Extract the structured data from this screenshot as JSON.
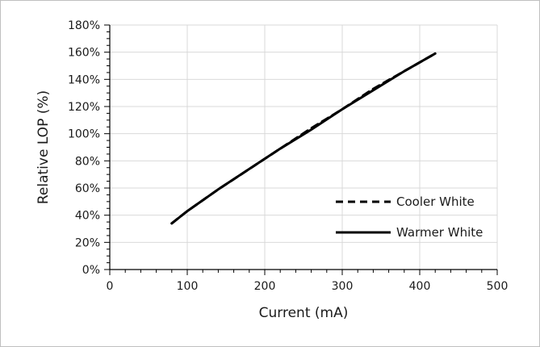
{
  "chart_data": {
    "type": "line",
    "xlabel": "Current (mA)",
    "ylabel": "Relative LOP (%)",
    "xlim": [
      0,
      500
    ],
    "ylim": [
      0,
      180
    ],
    "x_ticks": [
      "0",
      "100",
      "200",
      "300",
      "400",
      "500"
    ],
    "y_ticks": [
      "0%",
      "20%",
      "40%",
      "60%",
      "80%",
      "100%",
      "120%",
      "140%",
      "160%",
      "180%"
    ],
    "grid": true,
    "legend_position": "bottom-right",
    "series": [
      {
        "name": "Cooler White",
        "style": "dashed",
        "color": "#000000",
        "x": [
          80,
          100,
          140,
          180,
          220,
          260,
          300,
          340,
          380,
          420
        ],
        "y": [
          34,
          43,
          59,
          74,
          89,
          104,
          118,
          133,
          146,
          159
        ]
      },
      {
        "name": "Warmer White",
        "style": "solid",
        "color": "#000000",
        "x": [
          80,
          100,
          140,
          180,
          220,
          260,
          300,
          340,
          380,
          420
        ],
        "y": [
          34,
          43,
          59,
          74,
          89,
          103,
          118,
          132,
          146,
          159
        ]
      }
    ]
  }
}
